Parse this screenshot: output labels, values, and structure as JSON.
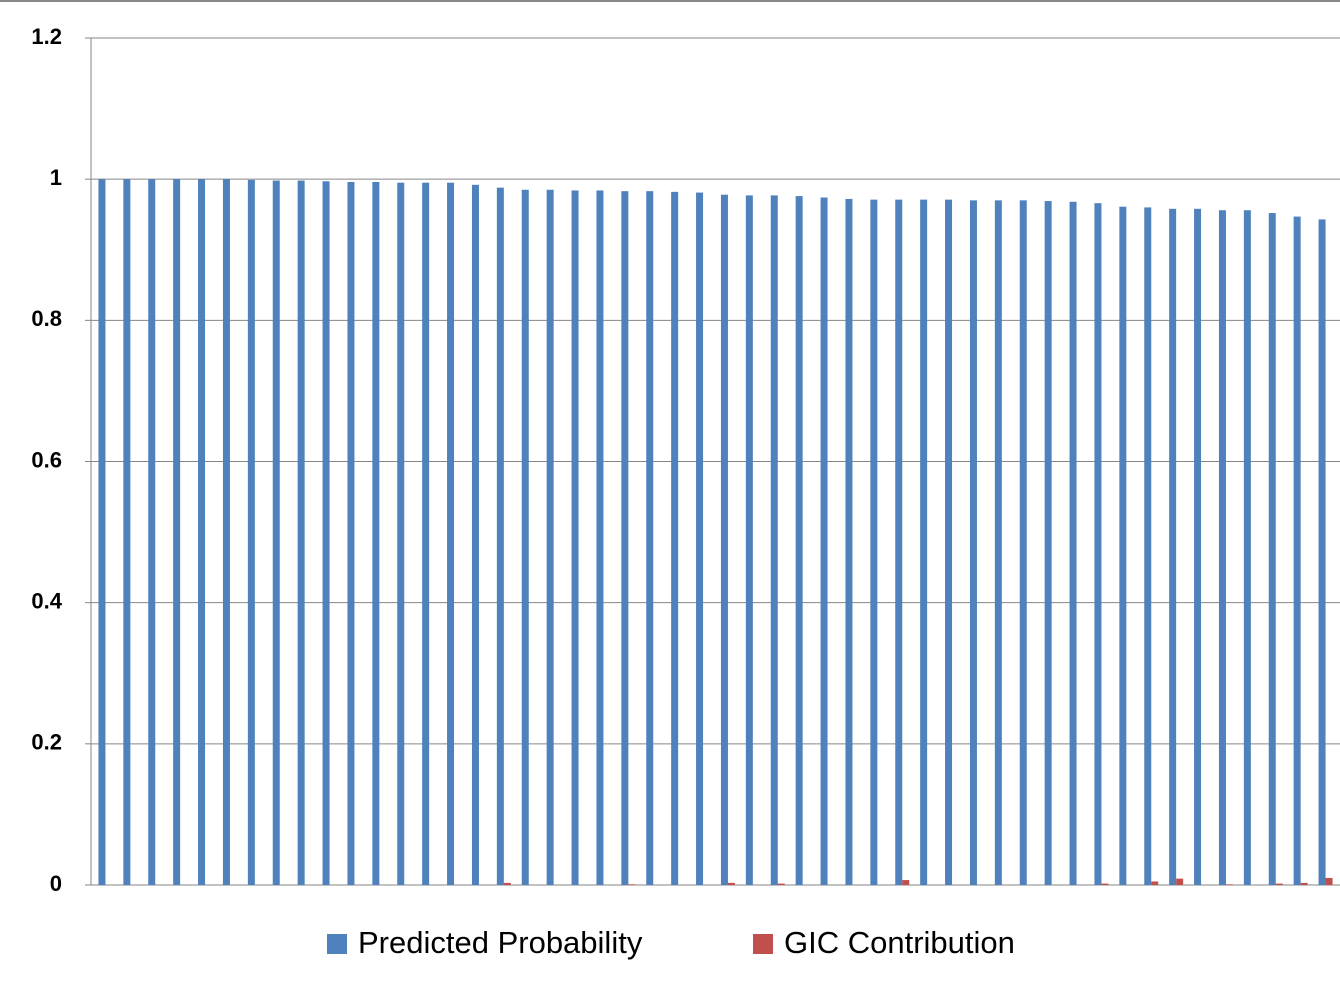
{
  "chart_data": {
    "type": "bar",
    "categories": [
      null,
      null,
      null,
      null,
      null,
      null,
      null,
      null,
      null,
      null,
      null,
      null,
      null,
      null,
      null,
      null,
      null,
      null,
      null,
      null,
      null,
      null,
      null,
      null,
      null,
      null,
      null,
      null,
      null,
      null,
      null,
      null,
      null,
      null,
      null,
      null,
      null,
      null,
      null,
      null,
      null,
      null,
      null,
      null,
      null,
      null,
      null,
      null,
      null,
      null
    ],
    "series": [
      {
        "name": "Predicted Probability",
        "color": "#4f81bd",
        "values": [
          1.0,
          1.0,
          1.0,
          1.0,
          1.0,
          1.0,
          0.999,
          0.998,
          0.998,
          0.997,
          0.996,
          0.996,
          0.995,
          0.995,
          0.995,
          0.992,
          0.988,
          0.985,
          0.985,
          0.984,
          0.984,
          0.983,
          0.983,
          0.982,
          0.981,
          0.978,
          0.977,
          0.977,
          0.976,
          0.974,
          0.972,
          0.971,
          0.971,
          0.971,
          0.971,
          0.97,
          0.97,
          0.97,
          0.969,
          0.968,
          0.966,
          0.961,
          0.96,
          0.958,
          0.958,
          0.956,
          0.956,
          0.952,
          0.947,
          0.943
        ]
      },
      {
        "name": "GIC Contribution",
        "color": "#c0504d",
        "values": [
          0,
          0,
          0,
          0,
          0,
          0,
          0,
          0,
          0,
          0,
          0,
          0,
          0,
          0,
          0,
          0,
          0.003,
          0,
          0,
          0,
          0,
          0.001,
          0,
          0,
          0,
          0.003,
          0,
          0.002,
          0,
          0,
          0,
          0,
          0.007,
          0,
          0,
          0,
          0,
          0,
          0,
          0,
          0.002,
          0,
          0.005,
          0.009,
          0,
          0.001,
          0,
          0.002,
          0.003,
          0.01
        ]
      }
    ],
    "ylim": [
      0,
      1.2
    ],
    "yticks": [
      0,
      0.2,
      0.4,
      0.6,
      0.8,
      1,
      1.2
    ],
    "grid": true,
    "legend": "bottom"
  }
}
